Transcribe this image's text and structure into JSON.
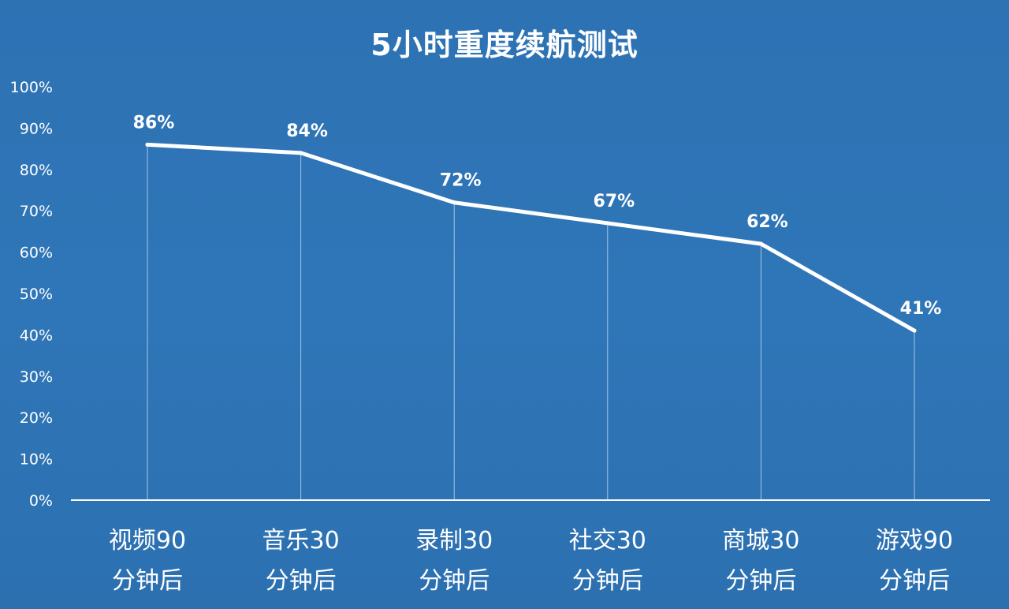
{
  "chart_data": {
    "type": "line",
    "title": "5小时重度续航测试",
    "xlabel": "",
    "ylabel": "",
    "ylim": [
      0,
      100
    ],
    "y_ticks": [
      "0%",
      "10%",
      "20%",
      "30%",
      "40%",
      "50%",
      "60%",
      "70%",
      "80%",
      "90%",
      "100%"
    ],
    "categories": [
      [
        "视频90",
        "分钟后"
      ],
      [
        "音乐30",
        "分钟后"
      ],
      [
        "录制30",
        "分钟后"
      ],
      [
        "社交30",
        "分钟后"
      ],
      [
        "商城30",
        "分钟后"
      ],
      [
        "游戏90",
        "分钟后"
      ]
    ],
    "series": [
      {
        "values": [
          86,
          84,
          72,
          67,
          62,
          41
        ],
        "labels": [
          "86%",
          "84%",
          "72%",
          "67%",
          "62%",
          "41%"
        ]
      }
    ],
    "grid": false,
    "drop_lines": true,
    "legend": "none",
    "colors": {
      "background": "#2f74b5",
      "line": "#ffffff",
      "text": "#ffffff",
      "drop_line": "#cfe0f3"
    }
  }
}
